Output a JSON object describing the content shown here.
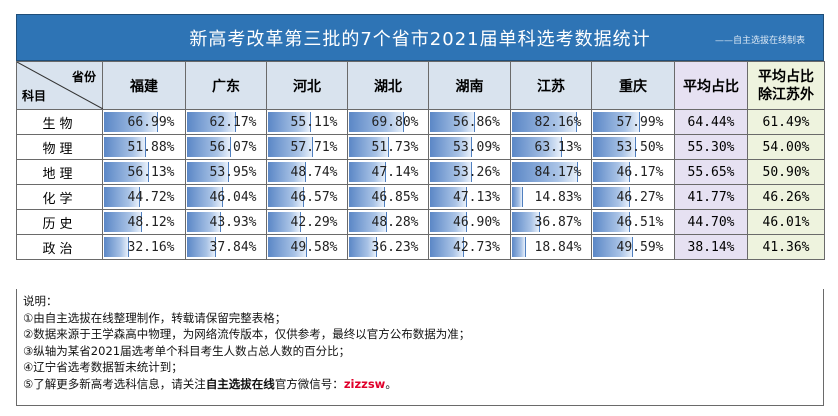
{
  "title": "新高考改革第三批的7个省市2021届单科选考数据统计",
  "credit": "——自主选拔在线制表",
  "corner": {
    "top_right": "省份",
    "bottom_left": "科目"
  },
  "columns": [
    "福建",
    "广东",
    "河北",
    "湖北",
    "湖南",
    "江苏",
    "重庆"
  ],
  "avg_header": "平均占比",
  "avg2_header_line1": "平均占比",
  "avg2_header_line2": "除江苏外",
  "bar_color": "#5b87c6",
  "rows": [
    {
      "subject": "生物",
      "values": [
        "66.99%",
        "62.17%",
        "55.11%",
        "69.80%",
        "56.86%",
        "82.16%",
        "57.99%"
      ],
      "pcts": [
        66.99,
        62.17,
        55.11,
        69.8,
        56.86,
        82.16,
        57.99
      ],
      "avg": "64.44%",
      "avg2": "61.49%"
    },
    {
      "subject": "物理",
      "values": [
        "51.88%",
        "56.07%",
        "57.71%",
        "51.73%",
        "53.09%",
        "63.13%",
        "53.50%"
      ],
      "pcts": [
        51.88,
        56.07,
        57.71,
        51.73,
        53.09,
        63.13,
        53.5
      ],
      "avg": "55.30%",
      "avg2": "54.00%"
    },
    {
      "subject": "地理",
      "values": [
        "56.13%",
        "53.95%",
        "48.74%",
        "47.14%",
        "53.26%",
        "84.17%",
        "46.17%"
      ],
      "pcts": [
        56.13,
        53.95,
        48.74,
        47.14,
        53.26,
        84.17,
        46.17
      ],
      "avg": "55.65%",
      "avg2": "50.90%"
    },
    {
      "subject": "化学",
      "values": [
        "44.72%",
        "46.04%",
        "46.57%",
        "46.85%",
        "47.13%",
        "14.83%",
        "46.27%"
      ],
      "pcts": [
        44.72,
        46.04,
        46.57,
        46.85,
        47.13,
        14.83,
        46.27
      ],
      "avg": "41.77%",
      "avg2": "46.26%"
    },
    {
      "subject": "历史",
      "values": [
        "48.12%",
        "43.93%",
        "42.29%",
        "48.28%",
        "46.90%",
        "36.87%",
        "46.51%"
      ],
      "pcts": [
        48.12,
        43.93,
        42.29,
        48.28,
        46.9,
        36.87,
        46.51
      ],
      "avg": "44.70%",
      "avg2": "46.01%"
    },
    {
      "subject": "政治",
      "values": [
        "32.16%",
        "37.84%",
        "49.58%",
        "36.23%",
        "42.73%",
        "18.84%",
        "49.59%"
      ],
      "pcts": [
        32.16,
        37.84,
        49.58,
        36.23,
        42.73,
        18.84,
        49.59
      ],
      "avg": "38.14%",
      "avg2": "41.36%"
    }
  ],
  "notes": {
    "heading": "说明：",
    "n1": "①由自主选拔在线整理制作，转载请保留完整表格；",
    "n2": "②数据来源于王学森高中物理，为网络流传版本，仅供参考，最终以官方公布数据为准；",
    "n3": "③纵轴为某省2021届选考单个科目考生人数占总人数的百分比；",
    "n4": "④辽宁省选考数据暂未统计到；",
    "n5_prefix": "⑤了解更多新高考选科信息，请关注",
    "n5_highlight": "自主选拔在线",
    "n5_mid": "官方微信号：",
    "n5_wechat": "zizzsw",
    "n5_suffix": "。"
  }
}
